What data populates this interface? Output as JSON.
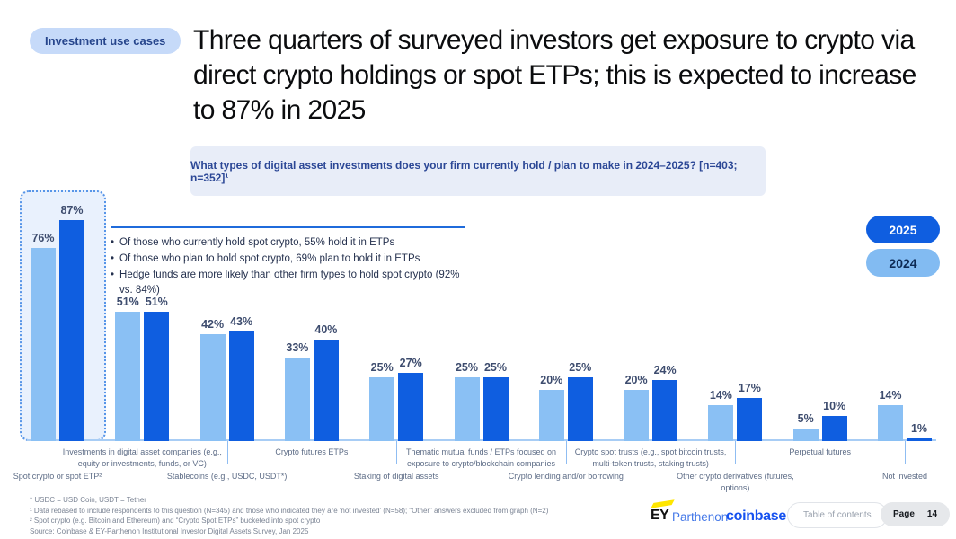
{
  "badge": {
    "label": "Investment use cases"
  },
  "title": "Three quarters of surveyed investors get exposure to crypto via direct crypto holdings or spot ETPs; this is expected to increase to 87% in 2025",
  "question_banner": "What types of digital asset investments does your firm currently hold / plan to make in 2024–2025? [n=403; n=352]¹",
  "legend": [
    {
      "label": "2025",
      "bg": "#0f5ee0",
      "fg": "#ffffff"
    },
    {
      "label": "2024",
      "bg": "#82bbf2",
      "fg": "#0d2a55"
    }
  ],
  "callouts": [
    "Of those who currently hold spot crypto, 55% hold it in ETPs",
    "Of those who plan to hold spot crypto, 69% plan to hold it in ETPs",
    "Hedge funds are more likely than other firm types to hold spot crypto (92% vs. 84%)"
  ],
  "chart_data": {
    "type": "bar",
    "categories": [
      "Spot crypto or spot ETP²",
      "Investments in digital asset companies (e.g., equity or investments, funds, or VC)",
      "Stablecoins (e.g., USDC, USDT*)",
      "Crypto futures ETPs",
      "Staking of digital assets",
      "Thematic mutual funds / ETPs focused on exposure to crypto/blockchain companies",
      "Crypto lending and/or borrowing",
      "Crypto spot trusts (e.g., spot bitcoin trusts, multi-token trusts, staking trusts)",
      "Other crypto derivatives (futures, options)",
      "Perpetual futures",
      "Not invested"
    ],
    "series": [
      {
        "name": "2024",
        "color": "#8ac0f4",
        "values": [
          76,
          51,
          42,
          33,
          25,
          25,
          20,
          20,
          14,
          5,
          14
        ]
      },
      {
        "name": "2025",
        "color": "#0f5ee0",
        "values": [
          87,
          51,
          43,
          40,
          27,
          25,
          25,
          24,
          17,
          10,
          1
        ]
      }
    ],
    "value_suffix": "%",
    "ylim": [
      0,
      100
    ],
    "grid": false,
    "legend_position": "right",
    "highlight_category_index": 0
  },
  "footnotes": [
    "* USDC = USD Coin, USDT = Tether",
    "¹ Data rebased to include respondents to this question (N=345) and those who indicated they are 'not invested' (N=58); “Other” answers excluded from graph (N=2)",
    "² Spot crypto (e.g. Bitcoin and Ethereum) and “Crypto Spot ETPs” bucketed into spot crypto",
    "Source: Coinbase & EY-Parthenon Institutional Investor Digital Assets Survey, Jan 2025"
  ],
  "footer": {
    "ey": "EY",
    "parthenon": "Parthenon",
    "coinbase": "coinbase",
    "toc_label": "Table of contents",
    "page_label": "Page",
    "page_number": "14"
  }
}
